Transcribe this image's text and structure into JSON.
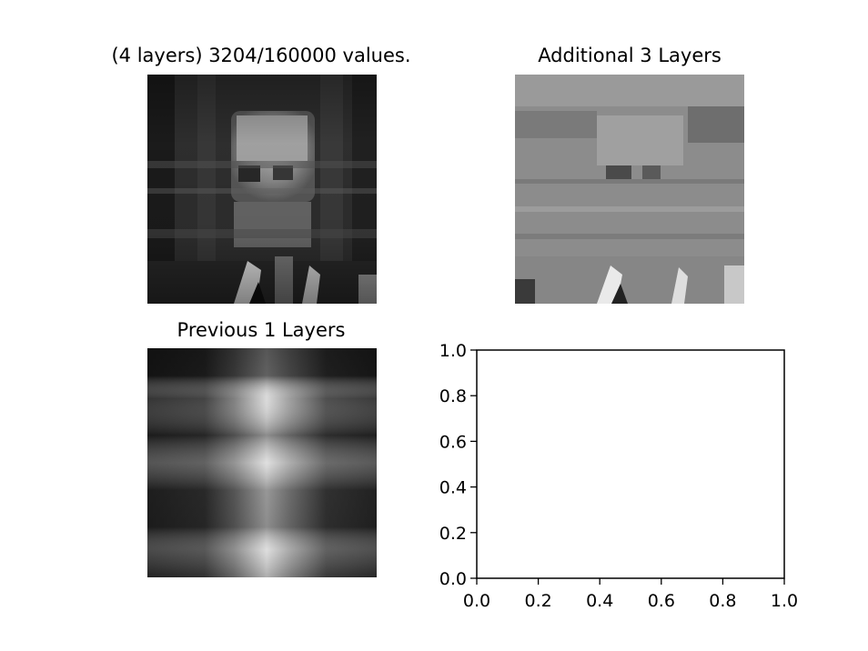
{
  "panels": {
    "top_left": {
      "title": "(4 layers) 3204/160000 values."
    },
    "top_right": {
      "title": "Additional 3 Layers"
    },
    "bottom_left": {
      "title": "Previous 1 Layers"
    }
  },
  "chart_data": [
    {
      "type": "image",
      "title": "(4 layers) 3204/160000 values.",
      "colormap": "gray",
      "axis": "off"
    },
    {
      "type": "image",
      "title": "Additional 3 Layers",
      "colormap": "gray",
      "axis": "off"
    },
    {
      "type": "image",
      "title": "Previous 1 Layers",
      "colormap": "gray",
      "axis": "off"
    },
    {
      "type": "scatter",
      "title": "",
      "xlabel": "",
      "ylabel": "",
      "xlim": [
        0.0,
        1.0
      ],
      "ylim": [
        0.0,
        1.0
      ],
      "x_ticks": [
        "0.0",
        "0.2",
        "0.4",
        "0.6",
        "0.8",
        "1.0"
      ],
      "y_ticks": [
        "0.0",
        "0.2",
        "0.4",
        "0.6",
        "0.8",
        "1.0"
      ],
      "series": []
    }
  ]
}
